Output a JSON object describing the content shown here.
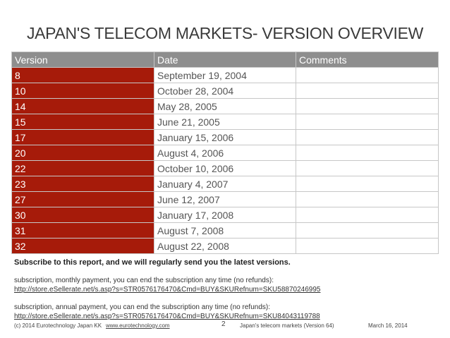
{
  "title": "JAPAN'S TELECOM MARKETS- VERSION OVERVIEW",
  "table": {
    "headers": [
      "Version",
      "Date",
      "Comments"
    ],
    "rows": [
      {
        "version": "8",
        "date": "September 19, 2004",
        "comment": ""
      },
      {
        "version": "10",
        "date": "October 28, 2004",
        "comment": ""
      },
      {
        "version": "14",
        "date": "May 28, 2005",
        "comment": ""
      },
      {
        "version": "15",
        "date": "June 21, 2005",
        "comment": ""
      },
      {
        "version": "17",
        "date": "January 15, 2006",
        "comment": ""
      },
      {
        "version": "20",
        "date": "August 4, 2006",
        "comment": ""
      },
      {
        "version": "22",
        "date": "October 10, 2006",
        "comment": ""
      },
      {
        "version": "23",
        "date": "January 4, 2007",
        "comment": ""
      },
      {
        "version": "27",
        "date": "June 12, 2007",
        "comment": ""
      },
      {
        "version": "30",
        "date": "January 17, 2008",
        "comment": ""
      },
      {
        "version": "31",
        "date": "August 7, 2008",
        "comment": ""
      },
      {
        "version": "32",
        "date": "August 22, 2008",
        "comment": ""
      }
    ]
  },
  "subscribe": {
    "heading": "Subscribe to this report, and we will regularly send you the latest versions.",
    "monthly_text": "subscription, monthly payment, you can end the subscription any time (no refunds):",
    "monthly_link": "http://store.eSellerate.net/s.asp?s=STR0576176470&Cmd=BUY&SKURefnum=SKU58870246995",
    "annual_text": "subscription, annual payment, you can end the subscription any time (no refunds):",
    "annual_link": "http://store.eSellerate.net/s.asp?s=STR0576176470&Cmd=BUY&SKURefnum=SKU84043119788"
  },
  "footer": {
    "copyright": "(c) 2014 Eurotechnology Japan KK",
    "website": "www.eurotechnology.com",
    "page_number": "2",
    "report_name": "Japan's telecom markets (Version 64)",
    "date": "March 16, 2014"
  },
  "colors": {
    "version_cell": "#a61b0a",
    "header_row": "#8e8e8e"
  }
}
